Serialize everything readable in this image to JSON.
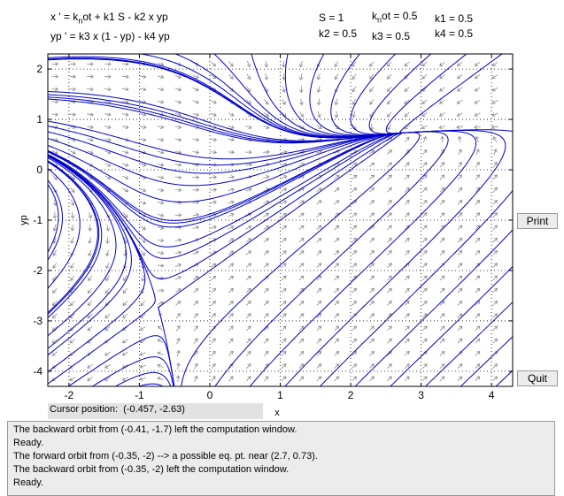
{
  "equations": {
    "line1": {
      "pre": "x ' = k",
      "sub": "n",
      "post": "ot + k1 S - k2 x yp"
    },
    "line2": "yp ' = k3 x (1 - yp) - k4 yp"
  },
  "parameters": {
    "S": "S = 1",
    "knot": {
      "pre": "k",
      "sub": "n",
      "post": "ot = 0.5"
    },
    "k1": "k1 = 0.5",
    "k2": "k2 = 0.5",
    "k3": "k3 = 0.5",
    "k4": "k4 = 0.5"
  },
  "buttons": {
    "print": "Print",
    "quit": "Quit"
  },
  "cursor": {
    "label": "Cursor position:",
    "value": "(-0.457, -2.63)"
  },
  "messages": [
    "The backward orbit from (-0.41, -1.7) left the computation window.",
    "Ready.",
    "The forward orbit from (-0.35, -2) --> a possible eq. pt. near (2.7, 0.73).",
    "The backward orbit from (-0.35, -2) left the computation window.",
    "Ready."
  ],
  "colors": {
    "orbit": "#0000cc",
    "arrow": "#8c8c8c",
    "grid": "#000000"
  },
  "chart_data": {
    "type": "phase-plane",
    "xlabel": "x",
    "ylabel": "yp",
    "xlim": [
      -2.3,
      4.3
    ],
    "ylim": [
      -4.3,
      2.3
    ],
    "xticks": [
      -2,
      -1,
      0,
      1,
      2,
      3,
      4
    ],
    "yticks": [
      2,
      1,
      0,
      -1,
      -2,
      -3,
      -4
    ],
    "grid": true,
    "equilibrium": [
      2.7,
      0.73
    ]
  }
}
